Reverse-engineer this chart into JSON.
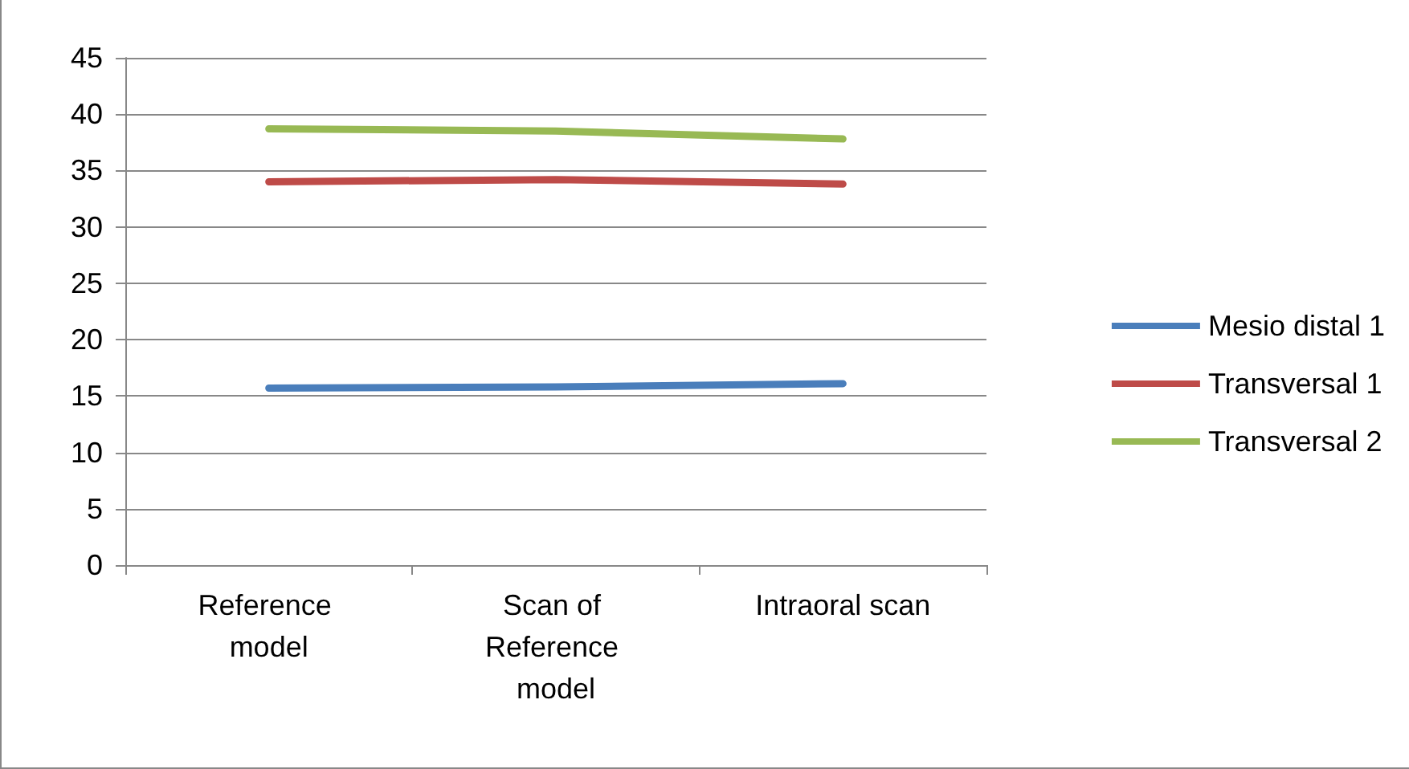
{
  "chart_data": {
    "type": "line",
    "categories": [
      "Reference model",
      "Scan of Reference model",
      "Intraoral scan"
    ],
    "series": [
      {
        "name": "Mesio distal 1",
        "color": "#4a7ebb",
        "values": [
          15.7,
          15.8,
          16.1
        ]
      },
      {
        "name": "Transversal 1",
        "color": "#be4b48",
        "values": [
          34.0,
          34.2,
          33.8
        ]
      },
      {
        "name": "Transversal 2",
        "color": "#98b954",
        "values": [
          38.7,
          38.5,
          37.8
        ]
      }
    ],
    "ylim": [
      0,
      45
    ],
    "yticks": [
      0,
      5,
      10,
      15,
      20,
      25,
      30,
      35,
      40,
      45
    ],
    "grid": "y",
    "legend": "right",
    "marker": "none",
    "line_style": "solid"
  }
}
